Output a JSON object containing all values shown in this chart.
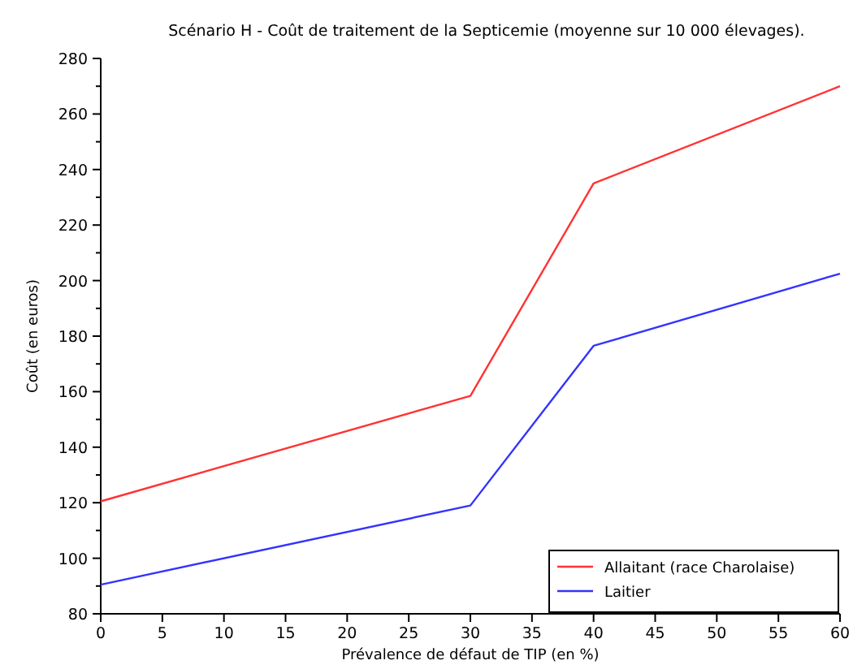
{
  "chart_data": {
    "type": "line",
    "title": "Scénario H - Coût de traitement de la Septicemie (moyenne sur 10 000 élevages).",
    "xlabel": "Prévalence de défaut de TIP (en %)",
    "ylabel": "Coût (en euros)",
    "x": [
      0,
      30,
      40,
      60
    ],
    "series": [
      {
        "name": "Allaitant (race Charolaise)",
        "color": "#ff3333",
        "values": [
          120.5,
          158.5,
          235,
          270
        ]
      },
      {
        "name": "Laitier",
        "color": "#3333ff",
        "values": [
          90.5,
          119,
          176.5,
          202.5
        ]
      }
    ],
    "xlim": [
      0,
      60
    ],
    "xticks": [
      0,
      5,
      10,
      15,
      20,
      25,
      30,
      35,
      40,
      45,
      50,
      55,
      60
    ],
    "ylim": [
      80,
      280
    ],
    "yticks": [
      80,
      {
        "value": 90,
        "label": null
      },
      100,
      {
        "value": 110,
        "label": null
      },
      120,
      {
        "value": 130,
        "label": null
      },
      140,
      {
        "value": 150,
        "label": null
      },
      160,
      {
        "value": 170,
        "label": null
      },
      180,
      {
        "value": 190,
        "label": null
      },
      200,
      {
        "value": 210,
        "label": null
      },
      220,
      {
        "value": 230,
        "label": null
      },
      240,
      {
        "value": 250,
        "label": null
      },
      260,
      {
        "value": 270,
        "label": null
      },
      280
    ],
    "grid": false,
    "legend": "bottom right",
    "marker": "none",
    "line_style": "solid"
  }
}
